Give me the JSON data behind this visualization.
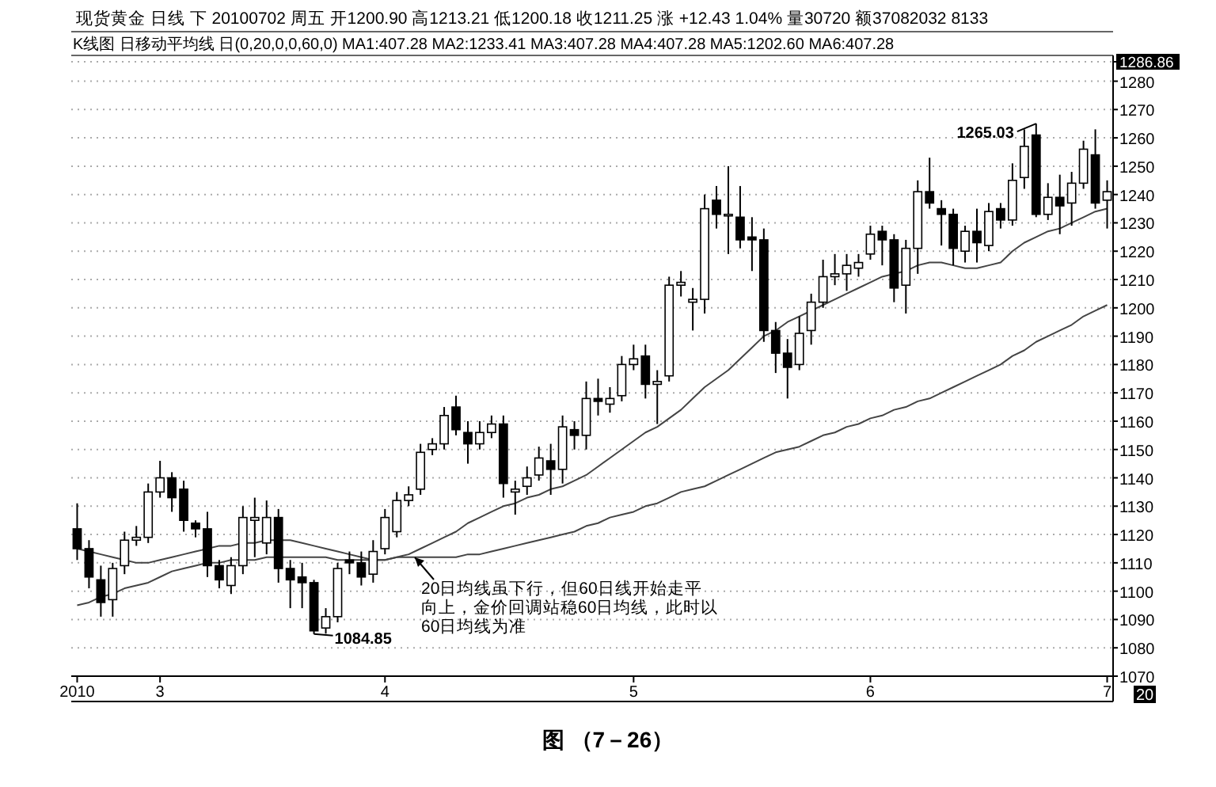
{
  "chart_data": {
    "type": "candlestick",
    "title": "现货黄金 日线 下 20100702 周五 开1200.90 高1213.21 低1200.18 收1211.25 涨 +12.43 1.04% 量30720 额37082032 8133",
    "subtitle": "K线图 日移动平均线 日(0,20,0,0,60,0) MA1:407.28 MA2:1233.41 MA3:407.28 MA4:407.28 MA5:1202.60 MA6:407.28",
    "categories": [
      "2010",
      null,
      null,
      null,
      null,
      null,
      null,
      "3",
      null,
      null,
      null,
      null,
      null,
      null,
      null,
      null,
      null,
      null,
      null,
      null,
      null,
      null,
      null,
      null,
      null,
      null,
      "4",
      null,
      null,
      null,
      null,
      null,
      null,
      null,
      null,
      null,
      null,
      null,
      null,
      null,
      null,
      null,
      null,
      null,
      null,
      null,
      null,
      "5",
      null,
      null,
      null,
      null,
      null,
      null,
      null,
      null,
      null,
      null,
      null,
      null,
      null,
      null,
      null,
      null,
      null,
      null,
      null,
      "6",
      null,
      null,
      null,
      null,
      null,
      null,
      null,
      null,
      null,
      null,
      null,
      null,
      null,
      null,
      null,
      null,
      null,
      null,
      null,
      "7"
    ],
    "ohlc": [
      [
        1122,
        1131,
        1111,
        1115
      ],
      [
        1115,
        1118,
        1101,
        1105
      ],
      [
        1104,
        1109,
        1091,
        1096
      ],
      [
        1097,
        1110,
        1091,
        1108
      ],
      [
        1109,
        1121,
        1106,
        1118
      ],
      [
        1118,
        1123,
        1116,
        1119
      ],
      [
        1119,
        1138,
        1117,
        1135
      ],
      [
        1135,
        1146,
        1133,
        1140
      ],
      [
        1140,
        1142,
        1128,
        1133
      ],
      [
        1136,
        1139,
        1121,
        1125
      ],
      [
        1124,
        1125,
        1119,
        1122
      ],
      [
        1122,
        1128,
        1105,
        1109
      ],
      [
        1109,
        1111,
        1101,
        1104
      ],
      [
        1102,
        1112,
        1099,
        1109
      ],
      [
        1109,
        1130,
        1106,
        1126
      ],
      [
        1125,
        1133,
        1112,
        1126
      ],
      [
        1117,
        1132,
        1113,
        1126
      ],
      [
        1126,
        1129,
        1103,
        1108
      ],
      [
        1108,
        1111,
        1094,
        1104
      ],
      [
        1105,
        1110,
        1094,
        1103
      ],
      [
        1103,
        1104,
        1084.85,
        1086
      ],
      [
        1087,
        1094,
        1085,
        1091
      ],
      [
        1091,
        1110,
        1089,
        1108
      ],
      [
        1111,
        1114,
        1106,
        1110
      ],
      [
        1110,
        1114,
        1102,
        1105
      ],
      [
        1106,
        1118,
        1103,
        1114
      ],
      [
        1115,
        1129,
        1113,
        1126
      ],
      [
        1121,
        1135,
        1119,
        1132
      ],
      [
        1132,
        1137,
        1130,
        1134
      ],
      [
        1136,
        1152,
        1134,
        1149
      ],
      [
        1150,
        1154,
        1148,
        1152
      ],
      [
        1152,
        1165,
        1150,
        1162
      ],
      [
        1165,
        1169,
        1155,
        1157
      ],
      [
        1156,
        1160,
        1145,
        1152
      ],
      [
        1152,
        1160,
        1150,
        1156
      ],
      [
        1156,
        1162,
        1154,
        1159
      ],
      [
        1159,
        1162,
        1133,
        1138
      ],
      [
        1135,
        1139,
        1127,
        1136
      ],
      [
        1137,
        1144,
        1134,
        1140
      ],
      [
        1141,
        1151,
        1139,
        1147
      ],
      [
        1146,
        1152,
        1134,
        1143
      ],
      [
        1143,
        1162,
        1138,
        1158
      ],
      [
        1157,
        1160,
        1150,
        1155
      ],
      [
        1155,
        1174,
        1150,
        1168
      ],
      [
        1168,
        1175,
        1162,
        1167
      ],
      [
        1166,
        1172,
        1163,
        1168
      ],
      [
        1169,
        1183,
        1167,
        1180
      ],
      [
        1180,
        1187,
        1178,
        1182
      ],
      [
        1183,
        1187,
        1168,
        1173
      ],
      [
        1173,
        1178,
        1159,
        1174
      ],
      [
        1176,
        1211,
        1174,
        1208
      ],
      [
        1208,
        1213,
        1204,
        1209
      ],
      [
        1202,
        1207,
        1192,
        1203
      ],
      [
        1203,
        1240,
        1198,
        1235
      ],
      [
        1238,
        1243,
        1228,
        1233
      ],
      [
        1233,
        1250,
        1219,
        1233
      ],
      [
        1232,
        1243,
        1221,
        1224
      ],
      [
        1225,
        1232,
        1213,
        1224
      ],
      [
        1224,
        1228,
        1188,
        1192
      ],
      [
        1192,
        1195,
        1177,
        1184
      ],
      [
        1184,
        1189,
        1168,
        1179
      ],
      [
        1180,
        1197,
        1178,
        1191
      ],
      [
        1192,
        1205,
        1187,
        1202
      ],
      [
        1202,
        1217,
        1200,
        1211
      ],
      [
        1211,
        1219,
        1208,
        1212
      ],
      [
        1212,
        1219,
        1206,
        1215
      ],
      [
        1214,
        1219,
        1211,
        1216
      ],
      [
        1219,
        1229,
        1217,
        1226
      ],
      [
        1227,
        1229,
        1215,
        1224
      ],
      [
        1224,
        1226,
        1202,
        1207
      ],
      [
        1208,
        1224,
        1198,
        1221
      ],
      [
        1221,
        1245,
        1212,
        1241
      ],
      [
        1241,
        1253,
        1235,
        1237
      ],
      [
        1235,
        1238,
        1222,
        1233
      ],
      [
        1233,
        1235,
        1215,
        1221
      ],
      [
        1220,
        1229,
        1216,
        1227
      ],
      [
        1227,
        1235,
        1216,
        1223
      ],
      [
        1222,
        1237,
        1220,
        1234
      ],
      [
        1235,
        1237,
        1228,
        1231
      ],
      [
        1231,
        1251,
        1229,
        1245
      ],
      [
        1246,
        1263,
        1242,
        1257
      ],
      [
        1261,
        1265.03,
        1232,
        1233
      ],
      [
        1233,
        1244,
        1231,
        1239
      ],
      [
        1239,
        1247,
        1226,
        1236
      ],
      [
        1237,
        1248,
        1229,
        1244
      ],
      [
        1244,
        1259,
        1242,
        1256
      ],
      [
        1254,
        1263,
        1235,
        1237
      ],
      [
        1238,
        1245,
        1228,
        1241
      ]
    ],
    "series": [
      {
        "type": "line",
        "color": "#444444",
        "values": [
          1115,
          1114,
          1113,
          1112,
          1111,
          1110,
          1110,
          1111,
          1112,
          1113,
          1114,
          1115,
          1116,
          1116,
          1117,
          1117,
          1118,
          1118,
          1118,
          1117,
          1116,
          1115,
          1114,
          1113,
          1112,
          1111,
          1111,
          1112,
          1113,
          1115,
          1117,
          1119,
          1121,
          1124,
          1126,
          1128,
          1130,
          1131,
          1133,
          1134,
          1136,
          1137,
          1139,
          1141,
          1144,
          1147,
          1150,
          1153,
          1156,
          1158,
          1161,
          1164,
          1168,
          1172,
          1175,
          1178,
          1182,
          1186,
          1190,
          1192,
          1195,
          1197,
          1199,
          1201,
          1203,
          1205,
          1207,
          1209,
          1211,
          1212,
          1213,
          1215,
          1216,
          1216,
          1215,
          1214,
          1214,
          1215,
          1216,
          1220,
          1223,
          1225,
          1227,
          1228,
          1230,
          1232,
          1234,
          1235
        ]
      },
      {
        "type": "line",
        "color": "#444444",
        "values": [
          1095,
          1096,
          1098,
          1099,
          1101,
          1102,
          1103,
          1105,
          1107,
          1108,
          1109,
          1110,
          1110,
          1111,
          1111,
          1111,
          1112,
          1112,
          1112,
          1112,
          1112,
          1112,
          1111,
          1111,
          1111,
          1111,
          1111,
          1112,
          1112,
          1112,
          1112,
          1112,
          1112,
          1113,
          1113,
          1114,
          1115,
          1116,
          1117,
          1118,
          1119,
          1120,
          1121,
          1123,
          1124,
          1126,
          1127,
          1128,
          1130,
          1131,
          1133,
          1135,
          1136,
          1137,
          1139,
          1141,
          1143,
          1145,
          1147,
          1149,
          1150,
          1151,
          1153,
          1155,
          1156,
          1158,
          1159,
          1161,
          1162,
          1164,
          1165,
          1167,
          1168,
          1170,
          1172,
          1174,
          1176,
          1178,
          1180,
          1183,
          1185,
          1188,
          1190,
          1192,
          1194,
          1197,
          1199,
          1201
        ]
      }
    ],
    "ylim": [
      1070,
      1286.86
    ],
    "yticks": [
      1070,
      1080,
      1090,
      1100,
      1110,
      1120,
      1130,
      1140,
      1150,
      1160,
      1170,
      1180,
      1190,
      1200,
      1210,
      1220,
      1230,
      1240,
      1250,
      1260,
      1270,
      1280,
      {
        "value": 1286.86,
        "label": "1286.86"
      }
    ],
    "grid": "y",
    "annotations": [
      "1084.85",
      "1265.03",
      "20日均线虽下行，但60日线开始走平向上，金价回调站稳60日均线，此时以60日均线为准",
      "图 （7－26）",
      "20"
    ]
  }
}
